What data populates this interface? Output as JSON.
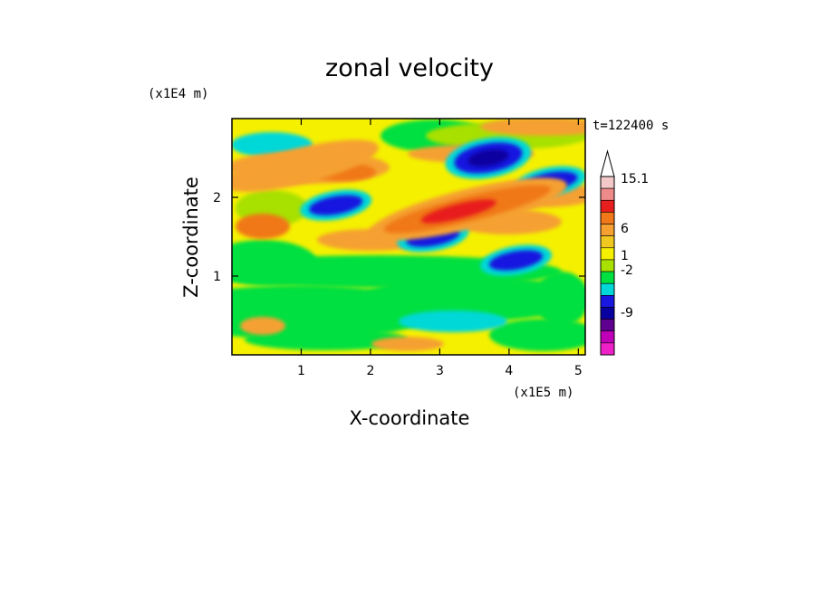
{
  "chart_data": {
    "type": "heatmap",
    "title": "zonal velocity",
    "xlabel": "X-coordinate",
    "ylabel": "Z-coordinate",
    "x_scale_note": "(x1E5 m)",
    "y_scale_note": "(x1E4 m)",
    "time_label": "t=122400 s",
    "xlim": [
      0,
      5.1
    ],
    "ylim": [
      0,
      3.0
    ],
    "x_ticks": [
      "1",
      "2",
      "3",
      "4",
      "5"
    ],
    "y_ticks": [
      "1",
      "2"
    ],
    "x_tick_values": [
      1,
      2,
      3,
      4,
      5
    ],
    "y_tick_values": [
      1,
      2
    ],
    "colorbar": {
      "labels": [
        "15.1",
        "6",
        "1",
        "-2",
        "-9"
      ],
      "label_values": [
        15.1,
        6,
        1,
        -2,
        -9
      ],
      "colors": [
        "#f2c8c8",
        "#ee8a8a",
        "#e81f1f",
        "#f07818",
        "#f5a030",
        "#f0c820",
        "#f5f000",
        "#a8e000",
        "#00e040",
        "#00d8d8",
        "#1818e0",
        "#0800a0",
        "#600090",
        "#c000b8",
        "#f020c8"
      ]
    },
    "features": [
      {
        "kind": "jet",
        "sign": "negative",
        "x_center": 3.7,
        "z_center": 2.5,
        "value": -9
      },
      {
        "kind": "jet",
        "sign": "negative",
        "x_center": 4.6,
        "z_center": 2.2,
        "value": -6
      },
      {
        "kind": "jet",
        "sign": "negative",
        "x_center": 1.5,
        "z_center": 1.9,
        "value": -7
      },
      {
        "kind": "jet",
        "sign": "negative",
        "x_center": 2.9,
        "z_center": 1.5,
        "value": -6
      },
      {
        "kind": "jet",
        "sign": "negative",
        "x_center": 4.1,
        "z_center": 1.2,
        "value": -5
      },
      {
        "kind": "band",
        "sign": "positive",
        "x_center": 3.4,
        "z_center": 1.85,
        "value": 6
      },
      {
        "kind": "band",
        "sign": "positive",
        "x_center": 1.0,
        "z_center": 2.4,
        "value": 3
      }
    ]
  }
}
